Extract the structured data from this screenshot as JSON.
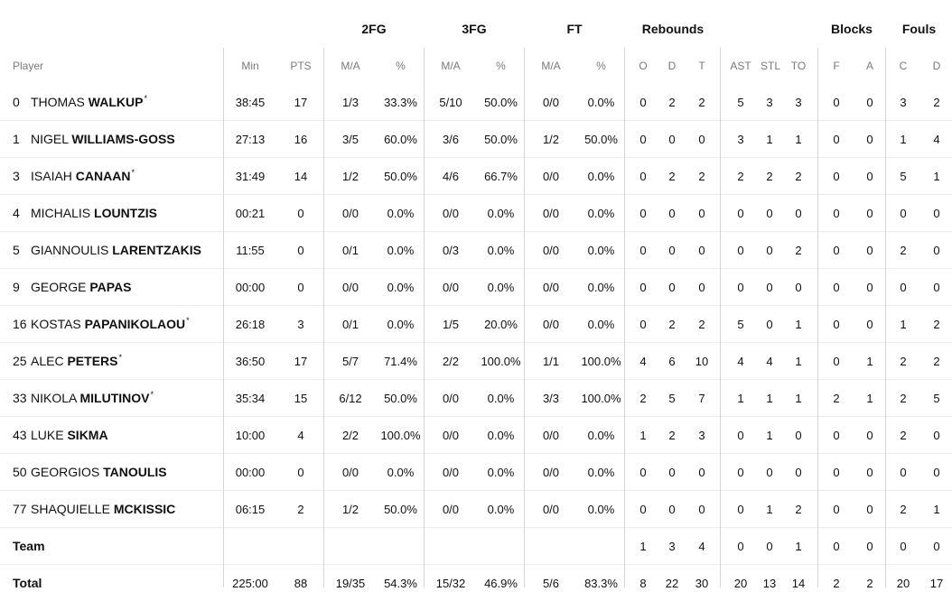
{
  "groups": {
    "fg2": "2FG",
    "fg3": "3FG",
    "ft": "FT",
    "rebounds": "Rebounds",
    "blocks": "Blocks",
    "fouls": "Fouls"
  },
  "columns": [
    "Player",
    "Min",
    "PTS",
    "M/A",
    "%",
    "M/A",
    "%",
    "M/A",
    "%",
    "O",
    "D",
    "T",
    "AST",
    "STL",
    "TO",
    "F",
    "A",
    "C",
    "D"
  ],
  "players": [
    {
      "num": "0",
      "first": "THOMAS",
      "last": "WALKUP",
      "starter": true,
      "cells": [
        "38:45",
        "17",
        "1/3",
        "33.3%",
        "5/10",
        "50.0%",
        "0/0",
        "0.0%",
        "0",
        "2",
        "2",
        "5",
        "3",
        "3",
        "0",
        "0",
        "3",
        "2"
      ]
    },
    {
      "num": "1",
      "first": "NIGEL",
      "last": "WILLIAMS-GOSS",
      "starter": false,
      "cells": [
        "27:13",
        "16",
        "3/5",
        "60.0%",
        "3/6",
        "50.0%",
        "1/2",
        "50.0%",
        "0",
        "0",
        "0",
        "3",
        "1",
        "1",
        "0",
        "0",
        "1",
        "4"
      ]
    },
    {
      "num": "3",
      "first": "ISAIAH",
      "last": "CANAAN",
      "starter": true,
      "cells": [
        "31:49",
        "14",
        "1/2",
        "50.0%",
        "4/6",
        "66.7%",
        "0/0",
        "0.0%",
        "0",
        "2",
        "2",
        "2",
        "2",
        "2",
        "0",
        "0",
        "5",
        "1"
      ]
    },
    {
      "num": "4",
      "first": "MICHALIS",
      "last": "LOUNTZIS",
      "starter": false,
      "cells": [
        "00:21",
        "0",
        "0/0",
        "0.0%",
        "0/0",
        "0.0%",
        "0/0",
        "0.0%",
        "0",
        "0",
        "0",
        "0",
        "0",
        "0",
        "0",
        "0",
        "0",
        "0"
      ]
    },
    {
      "num": "5",
      "first": "GIANNOULIS",
      "last": "LARENTZAKIS",
      "starter": false,
      "cells": [
        "11:55",
        "0",
        "0/1",
        "0.0%",
        "0/3",
        "0.0%",
        "0/0",
        "0.0%",
        "0",
        "0",
        "0",
        "0",
        "0",
        "2",
        "0",
        "0",
        "2",
        "0"
      ]
    },
    {
      "num": "9",
      "first": "GEORGE",
      "last": "PAPAS",
      "starter": false,
      "cells": [
        "00:00",
        "0",
        "0/0",
        "0.0%",
        "0/0",
        "0.0%",
        "0/0",
        "0.0%",
        "0",
        "0",
        "0",
        "0",
        "0",
        "0",
        "0",
        "0",
        "0",
        "0"
      ]
    },
    {
      "num": "16",
      "first": "KOSTAS",
      "last": "PAPANIKOLAOU",
      "starter": true,
      "cells": [
        "26:18",
        "3",
        "0/1",
        "0.0%",
        "1/5",
        "20.0%",
        "0/0",
        "0.0%",
        "0",
        "2",
        "2",
        "5",
        "0",
        "1",
        "0",
        "0",
        "1",
        "2"
      ]
    },
    {
      "num": "25",
      "first": "ALEC",
      "last": "PETERS",
      "starter": true,
      "cells": [
        "36:50",
        "17",
        "5/7",
        "71.4%",
        "2/2",
        "100.0%",
        "1/1",
        "100.0%",
        "4",
        "6",
        "10",
        "4",
        "4",
        "1",
        "0",
        "1",
        "2",
        "2"
      ]
    },
    {
      "num": "33",
      "first": "NIKOLA",
      "last": "MILUTINOV",
      "starter": true,
      "cells": [
        "35:34",
        "15",
        "6/12",
        "50.0%",
        "0/0",
        "0.0%",
        "3/3",
        "100.0%",
        "2",
        "5",
        "7",
        "1",
        "1",
        "1",
        "2",
        "1",
        "2",
        "5"
      ]
    },
    {
      "num": "43",
      "first": "LUKE",
      "last": "SIKMA",
      "starter": false,
      "cells": [
        "10:00",
        "4",
        "2/2",
        "100.0%",
        "0/0",
        "0.0%",
        "0/0",
        "0.0%",
        "1",
        "2",
        "3",
        "0",
        "1",
        "0",
        "0",
        "0",
        "2",
        "0"
      ]
    },
    {
      "num": "50",
      "first": "GEORGIOS",
      "last": "TANOULIS",
      "starter": false,
      "cells": [
        "00:00",
        "0",
        "0/0",
        "0.0%",
        "0/0",
        "0.0%",
        "0/0",
        "0.0%",
        "0",
        "0",
        "0",
        "0",
        "0",
        "0",
        "0",
        "0",
        "0",
        "0"
      ]
    },
    {
      "num": "77",
      "first": "SHAQUIELLE",
      "last": "MCKISSIC",
      "starter": false,
      "cells": [
        "06:15",
        "2",
        "1/2",
        "50.0%",
        "0/0",
        "0.0%",
        "0/0",
        "0.0%",
        "0",
        "0",
        "0",
        "0",
        "1",
        "2",
        "0",
        "0",
        "2",
        "1"
      ]
    }
  ],
  "team": {
    "label": "Team",
    "cells": [
      "",
      "",
      "",
      "",
      "",
      "",
      "",
      "",
      "1",
      "3",
      "4",
      "0",
      "0",
      "1",
      "0",
      "0",
      "0",
      "0"
    ]
  },
  "total": {
    "label": "Total",
    "cells": [
      "225:00",
      "88",
      "19/35",
      "54.3%",
      "15/32",
      "46.9%",
      "5/6",
      "83.3%",
      "8",
      "22",
      "30",
      "20",
      "13",
      "14",
      "2",
      "2",
      "20",
      "17"
    ]
  },
  "starter_mark": "*"
}
